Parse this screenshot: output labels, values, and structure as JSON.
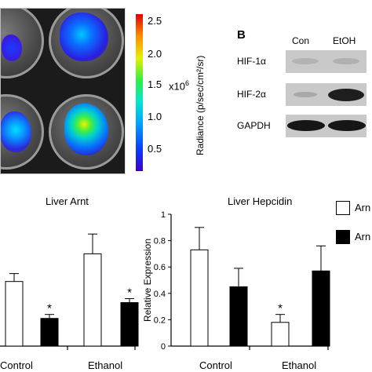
{
  "imaging": {
    "colorbar": {
      "ticks": [
        "2.5",
        "2.0",
        "1.5",
        "1.0",
        "0.5"
      ],
      "multiplier": "x10",
      "multiplier_exp": "6",
      "title": "Radiance (p/sec/cm²/sr)"
    }
  },
  "western_blot": {
    "panel_label": "B",
    "columns": [
      "Con",
      "EtOH"
    ],
    "rows": [
      "HIF-1α",
      "HIF-2α",
      "GAPDH"
    ]
  },
  "legend": [
    "Arn",
    "Arn"
  ],
  "chart_data": [
    {
      "type": "bar",
      "title": "Liver Arnt",
      "categories": [
        "Control",
        "Ethanol"
      ],
      "series": [
        {
          "values": [
            0.49,
            0.7
          ],
          "errors": [
            0.06,
            0.15
          ],
          "color": "#ffffff"
        },
        {
          "values": [
            0.21,
            0.33
          ],
          "errors": [
            0.03,
            0.03
          ],
          "color": "#000000"
        }
      ],
      "significance": [
        [
          "",
          ""
        ],
        [
          "*",
          "*"
        ]
      ],
      "ylim": [
        0,
        1
      ],
      "tick_labels": []
    },
    {
      "type": "bar",
      "title": "Liver Hepcidin",
      "ylabel": "Relative Expression",
      "categories": [
        "Control",
        "Ethanol"
      ],
      "series": [
        {
          "values": [
            0.73,
            0.18
          ],
          "errors": [
            0.17,
            0.06
          ],
          "color": "#ffffff"
        },
        {
          "values": [
            0.45,
            0.57
          ],
          "errors": [
            0.14,
            0.19
          ],
          "color": "#000000"
        }
      ],
      "significance": [
        [
          "",
          "*"
        ],
        [
          "",
          ""
        ]
      ],
      "ylim": [
        0,
        1
      ],
      "tick_labels": [
        "0",
        "0.2",
        "0.4",
        "0.6",
        "0.8",
        "1"
      ]
    }
  ]
}
